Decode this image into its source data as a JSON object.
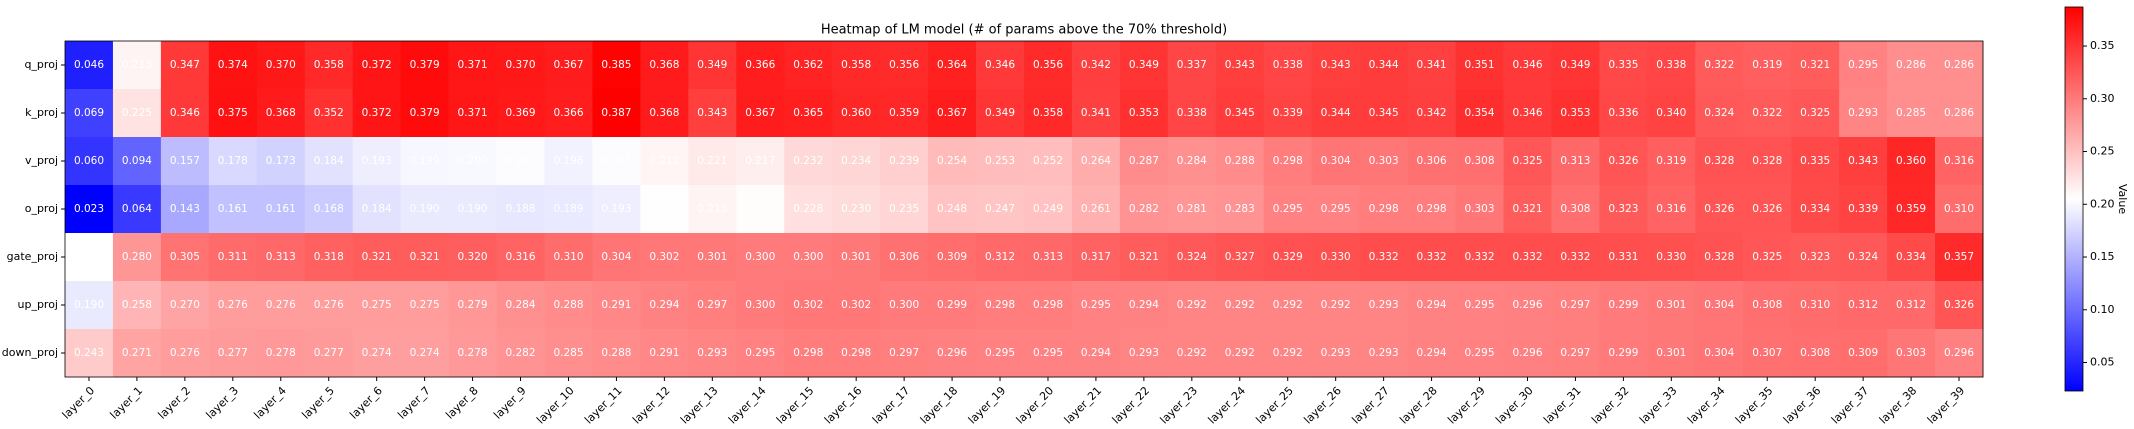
{
  "chart_data": {
    "type": "heatmap",
    "title": "Heatmap of LM model (# of params above the 70% threshold)",
    "x_categories": [
      "layer_0",
      "layer_1",
      "layer_2",
      "layer_3",
      "layer_4",
      "layer_5",
      "layer_6",
      "layer_7",
      "layer_8",
      "layer_9",
      "layer_10",
      "layer_11",
      "layer_12",
      "layer_13",
      "layer_14",
      "layer_15",
      "layer_16",
      "layer_17",
      "layer_18",
      "layer_19",
      "layer_20",
      "layer_21",
      "layer_22",
      "layer_23",
      "layer_24",
      "layer_25",
      "layer_26",
      "layer_27",
      "layer_28",
      "layer_29",
      "layer_30",
      "layer_31",
      "layer_32",
      "layer_33",
      "layer_34",
      "layer_35",
      "layer_36",
      "layer_37",
      "layer_38",
      "layer_39"
    ],
    "y_categories": [
      "q_proj",
      "k_proj",
      "v_proj",
      "o_proj",
      "gate_proj",
      "up_proj",
      "down_proj"
    ],
    "values": [
      [
        0.046,
        0.213,
        0.347,
        0.374,
        0.37,
        0.358,
        0.372,
        0.379,
        0.371,
        0.37,
        0.367,
        0.385,
        0.368,
        0.349,
        0.366,
        0.362,
        0.358,
        0.356,
        0.364,
        0.346,
        0.356,
        0.342,
        0.349,
        0.337,
        0.343,
        0.338,
        0.343,
        0.344,
        0.341,
        0.351,
        0.346,
        0.349,
        0.335,
        0.338,
        0.322,
        0.319,
        0.321,
        0.295,
        0.286,
        0.286
      ],
      [
        0.069,
        0.225,
        0.346,
        0.375,
        0.368,
        0.352,
        0.372,
        0.379,
        0.371,
        0.369,
        0.366,
        0.387,
        0.368,
        0.343,
        0.367,
        0.365,
        0.36,
        0.359,
        0.367,
        0.349,
        0.358,
        0.341,
        0.353,
        0.338,
        0.345,
        0.339,
        0.344,
        0.345,
        0.342,
        0.354,
        0.346,
        0.353,
        0.336,
        0.34,
        0.324,
        0.322,
        0.325,
        0.293,
        0.285,
        0.286
      ],
      [
        0.06,
        0.094,
        0.157,
        0.178,
        0.173,
        0.184,
        0.193,
        0.199,
        0.2,
        0.203,
        0.196,
        0.203,
        0.212,
        0.221,
        0.217,
        0.232,
        0.234,
        0.239,
        0.254,
        0.253,
        0.252,
        0.264,
        0.287,
        0.284,
        0.288,
        0.298,
        0.304,
        0.303,
        0.306,
        0.308,
        0.325,
        0.313,
        0.326,
        0.319,
        0.328,
        0.328,
        0.335,
        0.343,
        0.36,
        0.316
      ],
      [
        0.023,
        0.064,
        0.143,
        0.161,
        0.161,
        0.168,
        0.184,
        0.19,
        0.19,
        0.188,
        0.189,
        0.193,
        0.206,
        0.213,
        0.207,
        0.228,
        0.23,
        0.235,
        0.248,
        0.247,
        0.249,
        0.261,
        0.282,
        0.281,
        0.283,
        0.295,
        0.295,
        0.298,
        0.298,
        0.303,
        0.321,
        0.308,
        0.323,
        0.316,
        0.326,
        0.326,
        0.334,
        0.339,
        0.359,
        0.31
      ],
      [
        0.205,
        0.28,
        0.305,
        0.311,
        0.313,
        0.318,
        0.321,
        0.321,
        0.32,
        0.316,
        0.31,
        0.304,
        0.302,
        0.301,
        0.3,
        0.3,
        0.301,
        0.306,
        0.309,
        0.312,
        0.313,
        0.317,
        0.321,
        0.324,
        0.327,
        0.329,
        0.33,
        0.332,
        0.332,
        0.332,
        0.332,
        0.332,
        0.331,
        0.33,
        0.328,
        0.325,
        0.323,
        0.324,
        0.334,
        0.357
      ],
      [
        0.19,
        0.258,
        0.27,
        0.276,
        0.276,
        0.276,
        0.275,
        0.275,
        0.279,
        0.284,
        0.288,
        0.291,
        0.294,
        0.297,
        0.3,
        0.302,
        0.302,
        0.3,
        0.299,
        0.298,
        0.298,
        0.295,
        0.294,
        0.292,
        0.292,
        0.292,
        0.292,
        0.293,
        0.294,
        0.295,
        0.296,
        0.297,
        0.299,
        0.301,
        0.304,
        0.308,
        0.31,
        0.312,
        0.312,
        0.326
      ],
      [
        0.243,
        0.271,
        0.276,
        0.277,
        0.278,
        0.277,
        0.274,
        0.274,
        0.278,
        0.282,
        0.285,
        0.288,
        0.291,
        0.293,
        0.295,
        0.298,
        0.298,
        0.297,
        0.296,
        0.295,
        0.295,
        0.294,
        0.293,
        0.292,
        0.292,
        0.292,
        0.293,
        0.293,
        0.294,
        0.295,
        0.296,
        0.297,
        0.299,
        0.301,
        0.304,
        0.307,
        0.308,
        0.309,
        0.303,
        0.296
      ]
    ],
    "value_labels": [
      [
        "0.046",
        "0.213",
        "0.347",
        "0.374",
        "0.370",
        "0.358",
        "0.372",
        "0.379",
        "0.371",
        "0.370",
        "0.367",
        "0.385",
        "0.368",
        "0.349",
        "0.366",
        "0.362",
        "0.358",
        "0.356",
        "0.364",
        "0.346",
        "0.356",
        "0.342",
        "0.349",
        "0.337",
        "0.343",
        "0.338",
        "0.343",
        "0.344",
        "0.341",
        "0.351",
        "0.346",
        "0.349",
        "0.335",
        "0.338",
        "0.322",
        "0.319",
        "0.321",
        "0.295",
        "0.286",
        "0.286"
      ],
      [
        "0.069",
        "0.225",
        "0.346",
        "0.375",
        "0.368",
        "0.352",
        "0.372",
        "0.379",
        "0.371",
        "0.369",
        "0.366",
        "0.387",
        "0.368",
        "0.343",
        "0.367",
        "0.365",
        "0.360",
        "0.359",
        "0.367",
        "0.349",
        "0.358",
        "0.341",
        "0.353",
        "0.338",
        "0.345",
        "0.339",
        "0.344",
        "0.345",
        "0.342",
        "0.354",
        "0.346",
        "0.353",
        "0.336",
        "0.340",
        "0.324",
        "0.322",
        "0.325",
        "0.293",
        "0.285",
        "0.286"
      ],
      [
        "0.060",
        "0.094",
        "0.157",
        "0.178",
        "0.173",
        "0.184",
        "0.193",
        "0.199",
        "0.200",
        "0.203",
        "0.196",
        "0.203",
        "0.212",
        "0.221",
        "0.217",
        "0.232",
        "0.234",
        "0.239",
        "0.254",
        "0.253",
        "0.252",
        "0.264",
        "0.287",
        "0.284",
        "0.288",
        "0.298",
        "0.304",
        "0.303",
        "0.306",
        "0.308",
        "0.325",
        "0.313",
        "0.326",
        "0.319",
        "0.328",
        "0.328",
        "0.335",
        "0.343",
        "0.360",
        "0.316"
      ],
      [
        "0.023",
        "0.064",
        "0.143",
        "0.161",
        "0.161",
        "0.168",
        "0.184",
        "0.190",
        "0.190",
        "0.188",
        "0.189",
        "0.193",
        "0.206",
        "0.213",
        "0.207",
        "0.228",
        "0.230",
        "0.235",
        "0.248",
        "0.247",
        "0.249",
        "0.261",
        "0.282",
        "0.281",
        "0.283",
        "0.295",
        "0.295",
        "0.298",
        "0.298",
        "0.303",
        "0.321",
        "0.308",
        "0.323",
        "0.316",
        "0.326",
        "0.326",
        "0.334",
        "0.339",
        "0.359",
        "0.310"
      ],
      [
        "0.205",
        "0.280",
        "0.305",
        "0.311",
        "0.313",
        "0.318",
        "0.321",
        "0.321",
        "0.320",
        "0.316",
        "0.310",
        "0.304",
        "0.302",
        "0.301",
        "0.300",
        "0.300",
        "0.301",
        "0.306",
        "0.309",
        "0.312",
        "0.313",
        "0.317",
        "0.321",
        "0.324",
        "0.327",
        "0.329",
        "0.330",
        "0.332",
        "0.332",
        "0.332",
        "0.332",
        "0.332",
        "0.331",
        "0.330",
        "0.328",
        "0.325",
        "0.323",
        "0.324",
        "0.334",
        "0.357"
      ],
      [
        "0.190",
        "0.258",
        "0.270",
        "0.276",
        "0.276",
        "0.276",
        "0.275",
        "0.275",
        "0.279",
        "0.284",
        "0.288",
        "0.291",
        "0.294",
        "0.297",
        "0.300",
        "0.302",
        "0.302",
        "0.300",
        "0.299",
        "0.298",
        "0.298",
        "0.295",
        "0.294",
        "0.292",
        "0.292",
        "0.292",
        "0.292",
        "0.293",
        "0.294",
        "0.295",
        "0.296",
        "0.297",
        "0.299",
        "0.301",
        "0.304",
        "0.308",
        "0.310",
        "0.312",
        "0.312",
        "0.326"
      ],
      [
        "0.243",
        "0.271",
        "0.276",
        "0.277",
        "0.278",
        "0.277",
        "0.274",
        "0.274",
        "0.278",
        "0.282",
        "0.285",
        "0.288",
        "0.291",
        "0.293",
        "0.295",
        "0.298",
        "0.298",
        "0.297",
        "0.296",
        "0.295",
        "0.295",
        "0.294",
        "0.293",
        "0.292",
        "0.292",
        "0.292",
        "0.293",
        "0.293",
        "0.294",
        "0.295",
        "0.296",
        "0.297",
        "0.299",
        "0.301",
        "0.304",
        "0.307",
        "0.308",
        "0.309",
        "0.303",
        "0.296"
      ]
    ],
    "colormap": "bwr",
    "zlim": [
      0.023,
      0.387
    ],
    "zticks": [
      0.05,
      {
        "value": 0.1,
        "label": "0.10"
      },
      0.15,
      {
        "value": 0.2,
        "label": "0.20"
      },
      0.25,
      {
        "value": 0.3,
        "label": "0.30"
      },
      0.35
    ],
    "colorbar_label": "Value"
  }
}
